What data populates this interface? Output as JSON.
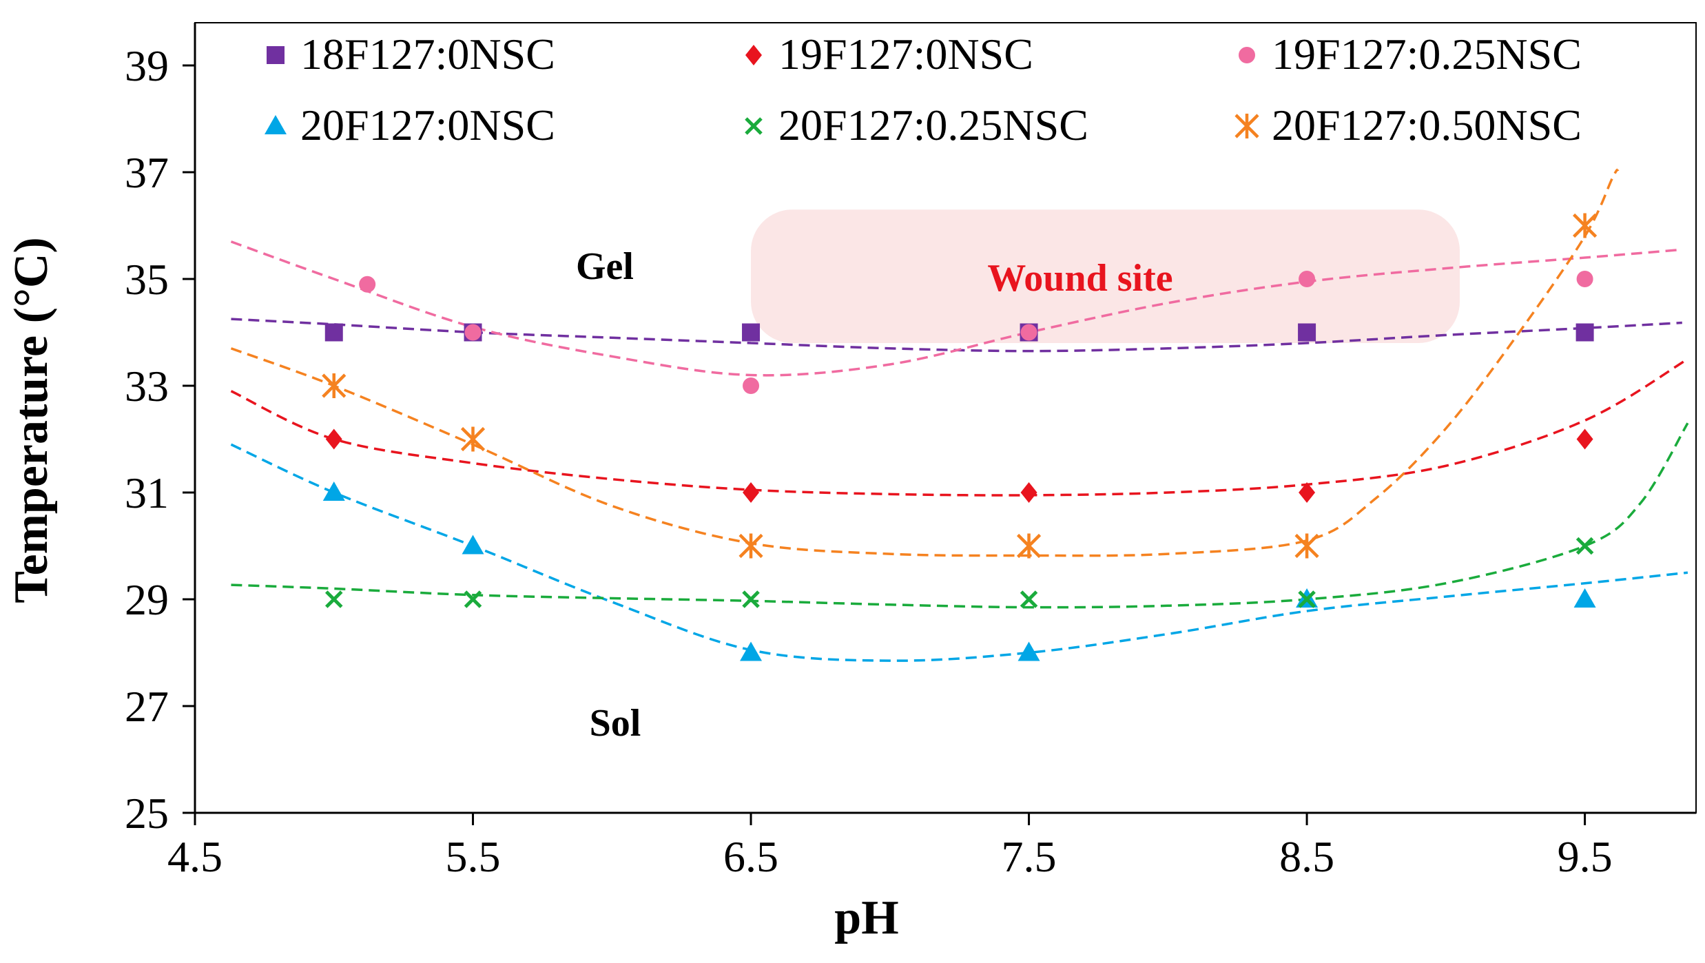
{
  "chart_data": {
    "type": "scatter",
    "title": "",
    "xlabel": "pH",
    "ylabel": "Temperature (°C)",
    "xlim": [
      4.5,
      9.9
    ],
    "ylim": [
      25,
      39.8
    ],
    "x_ticks": [
      "4.5",
      "5.5",
      "6.5",
      "7.5",
      "8.5",
      "9.5"
    ],
    "y_ticks": [
      "25",
      "27",
      "29",
      "31",
      "33",
      "35",
      "37",
      "39"
    ],
    "grid": false,
    "legend_position": "top",
    "annotations": {
      "gel": "Gel",
      "sol": "Sol",
      "wound": "Wound site"
    },
    "wound_region": {
      "x": [
        6.5,
        9.05
      ],
      "y": [
        33.8,
        36.3
      ],
      "color": "#fbe6e6"
    },
    "series": [
      {
        "name": "18F127:0NSC",
        "color": "#7030a0",
        "marker": "square",
        "points": [
          [
            5.0,
            34
          ],
          [
            5.5,
            34
          ],
          [
            6.5,
            34
          ],
          [
            7.5,
            34
          ],
          [
            8.5,
            34
          ],
          [
            9.5,
            34
          ]
        ],
        "fit": [
          [
            4.63,
            34.25
          ],
          [
            5.0,
            34.15
          ],
          [
            5.5,
            34.0
          ],
          [
            6.0,
            33.9
          ],
          [
            6.5,
            33.8
          ],
          [
            7.0,
            33.7
          ],
          [
            7.5,
            33.65
          ],
          [
            8.0,
            33.7
          ],
          [
            8.5,
            33.8
          ],
          [
            9.0,
            33.95
          ],
          [
            9.5,
            34.08
          ],
          [
            9.85,
            34.18
          ]
        ]
      },
      {
        "name": "19F127:0NSC",
        "color": "#e8141e",
        "marker": "diamond",
        "points": [
          [
            5.0,
            32
          ],
          [
            6.5,
            31
          ],
          [
            7.5,
            31
          ],
          [
            8.5,
            31
          ],
          [
            9.5,
            32
          ]
        ],
        "fit": [
          [
            4.63,
            32.9
          ],
          [
            5.0,
            32.0
          ],
          [
            5.5,
            31.55
          ],
          [
            6.0,
            31.25
          ],
          [
            6.5,
            31.05
          ],
          [
            7.0,
            30.97
          ],
          [
            7.5,
            30.95
          ],
          [
            8.0,
            31.0
          ],
          [
            8.5,
            31.15
          ],
          [
            9.0,
            31.5
          ],
          [
            9.5,
            32.35
          ],
          [
            9.87,
            33.5
          ]
        ]
      },
      {
        "name": "19F127:0.25NSC",
        "color": "#f06ba0",
        "marker": "circle",
        "points": [
          [
            5.12,
            34.9
          ],
          [
            5.5,
            34
          ],
          [
            6.5,
            33
          ],
          [
            7.5,
            34
          ],
          [
            8.5,
            35
          ],
          [
            9.5,
            35
          ]
        ],
        "fit": [
          [
            4.63,
            35.7
          ],
          [
            5.0,
            35.0
          ],
          [
            5.5,
            34.1
          ],
          [
            6.0,
            33.55
          ],
          [
            6.5,
            33.2
          ],
          [
            7.0,
            33.4
          ],
          [
            7.5,
            34.0
          ],
          [
            8.0,
            34.55
          ],
          [
            8.5,
            34.95
          ],
          [
            9.0,
            35.2
          ],
          [
            9.5,
            35.4
          ],
          [
            9.85,
            35.55
          ]
        ]
      },
      {
        "name": "20F127:0NSC",
        "color": "#00a6e6",
        "marker": "triangle",
        "points": [
          [
            5.0,
            31
          ],
          [
            5.5,
            30
          ],
          [
            6.5,
            28
          ],
          [
            7.5,
            28
          ],
          [
            8.5,
            29
          ],
          [
            9.5,
            29
          ]
        ],
        "fit": [
          [
            4.63,
            31.9
          ],
          [
            5.0,
            31.0
          ],
          [
            5.5,
            30.0
          ],
          [
            6.0,
            28.95
          ],
          [
            6.5,
            28.05
          ],
          [
            7.0,
            27.85
          ],
          [
            7.5,
            28.0
          ],
          [
            8.0,
            28.35
          ],
          [
            8.5,
            28.78
          ],
          [
            9.0,
            29.05
          ],
          [
            9.5,
            29.3
          ],
          [
            9.87,
            29.5
          ]
        ]
      },
      {
        "name": "20F127:0.25NSC",
        "color": "#1aab3c",
        "marker": "x",
        "points": [
          [
            5.0,
            29
          ],
          [
            5.5,
            29
          ],
          [
            6.5,
            29
          ],
          [
            7.5,
            29
          ],
          [
            8.5,
            29
          ],
          [
            9.5,
            30
          ]
        ],
        "fit": [
          [
            4.63,
            29.27
          ],
          [
            5.0,
            29.2
          ],
          [
            5.5,
            29.08
          ],
          [
            6.0,
            29.02
          ],
          [
            6.5,
            28.97
          ],
          [
            7.0,
            28.9
          ],
          [
            7.5,
            28.85
          ],
          [
            8.0,
            28.88
          ],
          [
            8.5,
            29.0
          ],
          [
            9.0,
            29.3
          ],
          [
            9.5,
            30.0
          ],
          [
            9.7,
            30.8
          ],
          [
            9.87,
            32.3
          ]
        ]
      },
      {
        "name": "20F127:0.50NSC",
        "color": "#f58220",
        "marker": "asterisk",
        "points": [
          [
            5.0,
            33
          ],
          [
            5.5,
            32
          ],
          [
            6.5,
            30
          ],
          [
            7.5,
            30
          ],
          [
            8.5,
            30
          ],
          [
            9.5,
            36
          ]
        ],
        "fit": [
          [
            4.63,
            33.7
          ],
          [
            5.0,
            33.0
          ],
          [
            5.5,
            31.9
          ],
          [
            6.0,
            30.75
          ],
          [
            6.5,
            30.05
          ],
          [
            7.0,
            29.85
          ],
          [
            7.5,
            29.82
          ],
          [
            8.0,
            29.85
          ],
          [
            8.5,
            30.1
          ],
          [
            8.75,
            30.9
          ],
          [
            9.0,
            32.2
          ],
          [
            9.25,
            33.9
          ],
          [
            9.5,
            35.8
          ],
          [
            9.6,
            36.9
          ],
          [
            9.62,
            37.05
          ]
        ]
      }
    ]
  }
}
